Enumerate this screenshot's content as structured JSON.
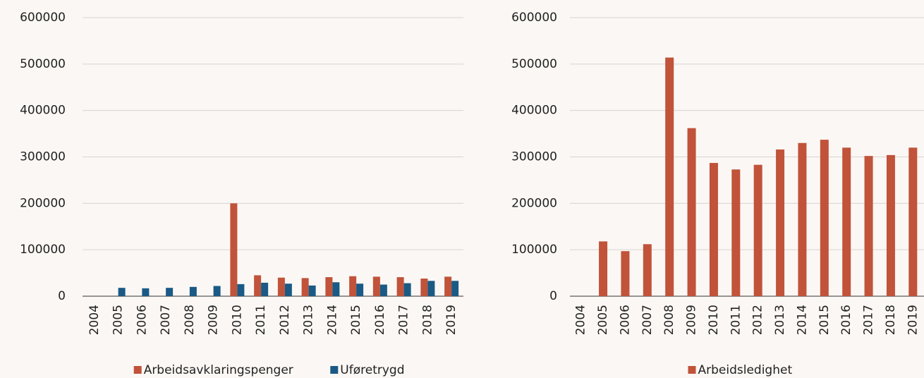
{
  "chart_data": [
    {
      "type": "bar",
      "categories": [
        "2004",
        "2005",
        "2006",
        "2007",
        "2008",
        "2009",
        "2010",
        "2011",
        "2012",
        "2013",
        "2014",
        "2015",
        "2016",
        "2017",
        "2018",
        "2019"
      ],
      "series": [
        {
          "name": "Arbeidsavklaringspenger",
          "color": "#c0533a",
          "values": [
            null,
            null,
            null,
            null,
            null,
            null,
            200000,
            45000,
            40000,
            39000,
            41000,
            43000,
            42000,
            41000,
            38000,
            42000
          ]
        },
        {
          "name": "Uføretrygd",
          "color": "#1a5a85",
          "values": [
            null,
            18000,
            17000,
            18000,
            20000,
            22000,
            26000,
            29000,
            27000,
            23000,
            30000,
            27000,
            25000,
            28000,
            33000,
            33000
          ]
        }
      ],
      "ylim": [
        0,
        600000
      ],
      "yticks": [
        0,
        100000,
        200000,
        300000,
        400000,
        500000,
        600000
      ],
      "grid": true,
      "legend": "bottom"
    },
    {
      "type": "bar",
      "categories": [
        "2004",
        "2005",
        "2006",
        "2007",
        "2008",
        "2009",
        "2010",
        "2011",
        "2012",
        "2013",
        "2014",
        "2015",
        "2016",
        "2017",
        "2018",
        "2019"
      ],
      "series": [
        {
          "name": "Arbeidsledighet",
          "color": "#c0533a",
          "values": [
            null,
            118000,
            97000,
            112000,
            514000,
            362000,
            287000,
            273000,
            283000,
            316000,
            330000,
            337000,
            320000,
            302000,
            304000,
            320000
          ]
        }
      ],
      "ylim": [
        0,
        600000
      ],
      "yticks": [
        0,
        100000,
        200000,
        300000,
        400000,
        500000,
        600000
      ],
      "grid": true,
      "legend": "bottom"
    }
  ]
}
